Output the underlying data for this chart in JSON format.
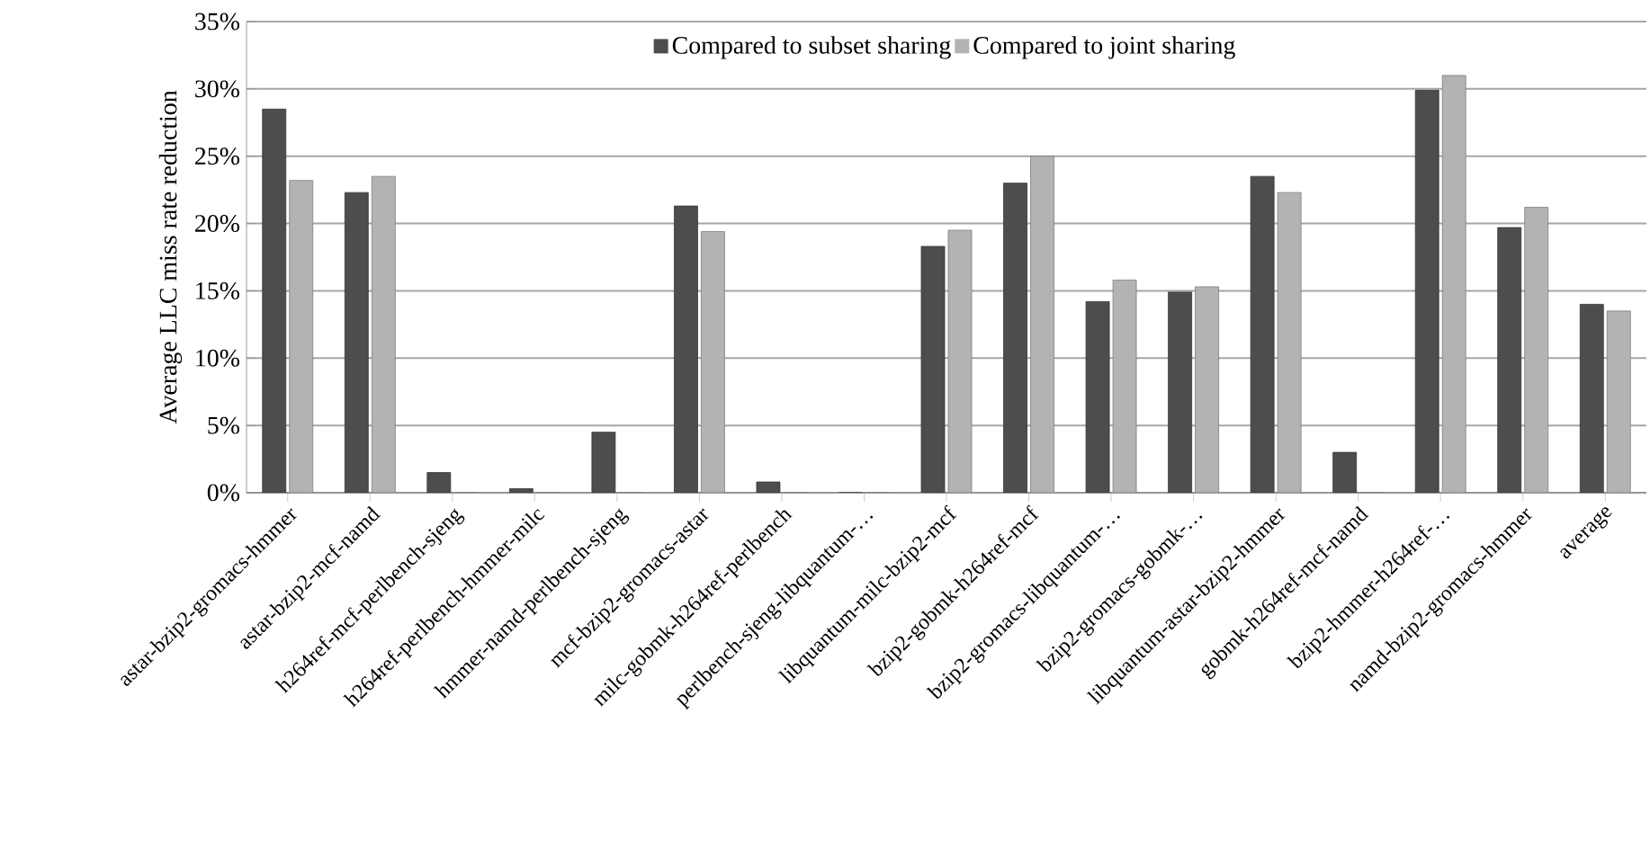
{
  "chart_data": {
    "type": "bar",
    "ylabel": "Average LLC miss rate reduction",
    "categories": [
      "astar-bzip2-gromacs-hmmer",
      "astar-bzip2-mcf-namd",
      "h264ref-mcf-perlbench-sjeng",
      "h264ref-perlbench-hmmer-milc",
      "hmmer-namd-perlbench-sjeng",
      "mcf-bzip2-gromacs-astar",
      "milc-gobmk-h264ref-perlbench",
      "perlbench-sjeng-libquantum-…",
      "libquantum-milc-bzip2-mcf",
      "bzip2-gobmk-h264ref-mcf",
      "bzip2-gromacs-libquantum-…",
      "bzip2-gromacs-gobmk-…",
      "libquantum-astar-bzip2-hmmer",
      "gobmk-h264ref-mcf-namd",
      "bzip2-hmmer-h264ref-…",
      "namd-bzip2-gromacs-hmmer",
      "average"
    ],
    "series": [
      {
        "name": "Compared to subset sharing",
        "color": "#4d4d4d",
        "values": [
          28.5,
          22.3,
          1.5,
          0.3,
          4.5,
          21.3,
          0.8,
          0,
          18.3,
          23.0,
          14.2,
          14.9,
          23.5,
          3.0,
          29.9,
          19.7,
          14.0
        ]
      },
      {
        "name": "Compared to joint sharing",
        "color": "#b3b3b3",
        "values": [
          23.2,
          23.5,
          0,
          0,
          0,
          19.4,
          0,
          0,
          19.5,
          25.0,
          15.8,
          15.3,
          22.3,
          0,
          31.0,
          21.2,
          13.5
        ]
      }
    ],
    "ylim": [
      0,
      35
    ],
    "yticks": [
      {
        "value": 0,
        "label": "0%"
      },
      {
        "value": 5,
        "label": "5%"
      },
      {
        "value": 10,
        "label": "10%"
      },
      {
        "value": 15,
        "label": "15%"
      },
      {
        "value": 20,
        "label": "20%"
      },
      {
        "value": 25,
        "label": "25%"
      },
      {
        "value": 30,
        "label": "30%"
      },
      {
        "value": 35,
        "label": "35%"
      }
    ],
    "grid": "y",
    "legend": "top"
  }
}
